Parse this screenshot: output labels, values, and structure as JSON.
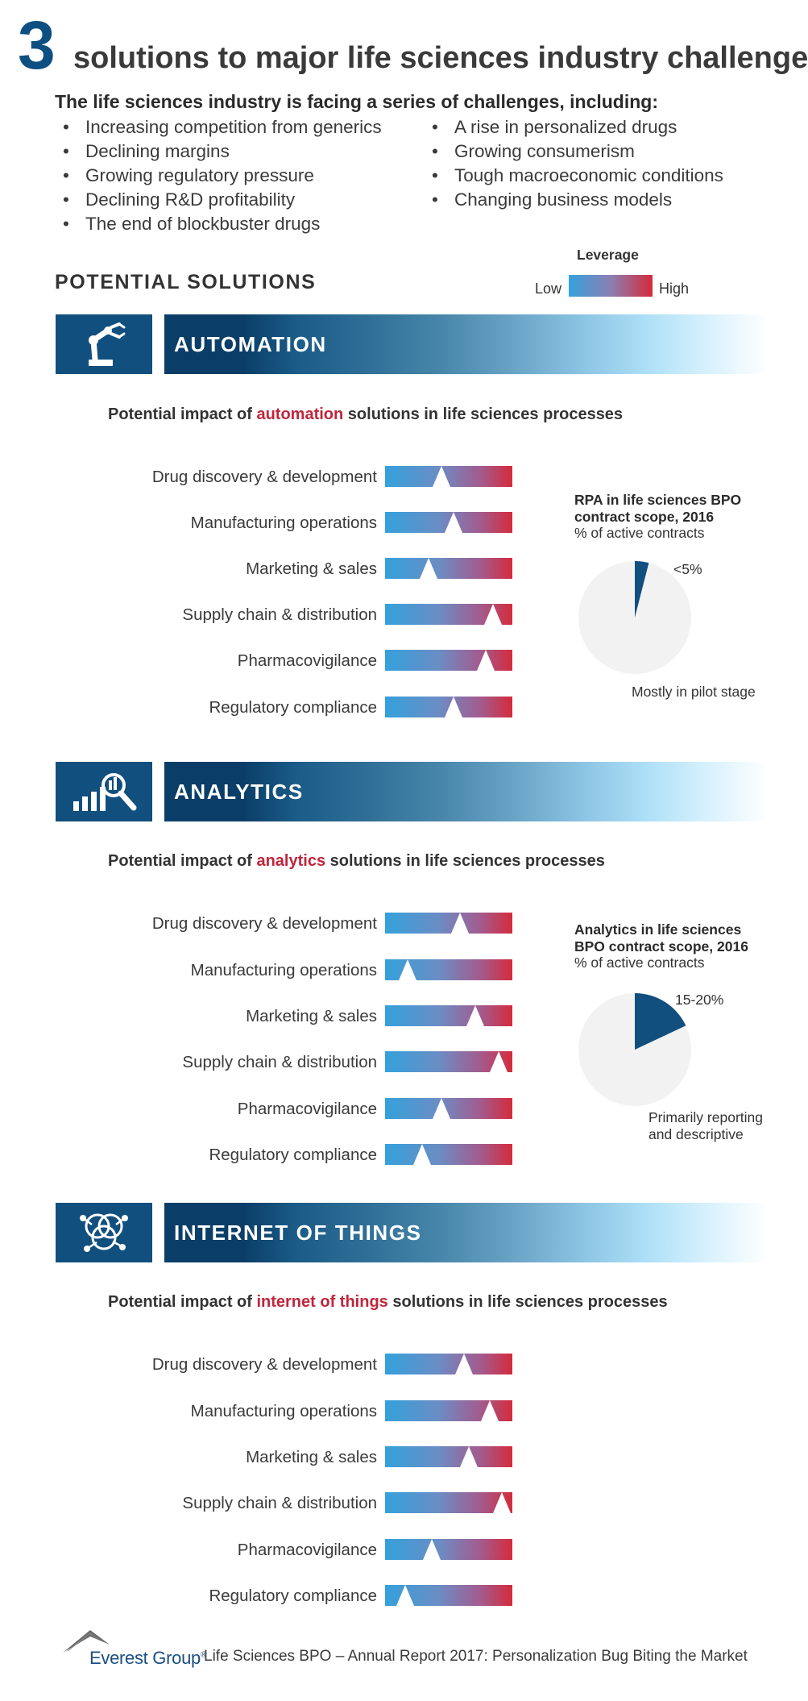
{
  "title": {
    "number": "3",
    "text": "solutions to major life sciences industry challenges"
  },
  "intro": "The life sciences industry is facing a series of challenges, including:",
  "challenges_left": [
    "Increasing competition from generics",
    "Declining margins",
    "Growing regulatory pressure",
    "Declining R&D profitability",
    "The end of blockbuster drugs"
  ],
  "challenges_right": [
    "A rise in personalized drugs",
    "Growing consumerism",
    "Tough macroeconomic conditions",
    "Changing business models"
  ],
  "potential_solutions": "POTENTIAL SOLUTIONS",
  "legend": {
    "title": "Leverage",
    "low": "Low",
    "high": "High",
    "low_color": "#34a1dc",
    "high_color": "#d42b3b"
  },
  "colors": {
    "navy": "#114f7e",
    "accent_red": "#c0253a",
    "title_blue": "#0d4f80"
  },
  "sections": [
    {
      "name": "AUTOMATION",
      "icon": "robot-arm-icon",
      "impact": {
        "prefix": "Potential impact of ",
        "highlight": "automation",
        "suffix": " solutions in life sciences processes"
      },
      "rows": [
        {
          "label": "Drug discovery & development",
          "leverage": 0.44
        },
        {
          "label": "Manufacturing operations",
          "leverage": 0.54
        },
        {
          "label": "Marketing & sales",
          "leverage": 0.34
        },
        {
          "label": "Supply chain & distribution",
          "leverage": 0.85
        },
        {
          "label": "Pharmacovigilance",
          "leverage": 0.79
        },
        {
          "label": "Regulatory compliance",
          "leverage": 0.54
        }
      ],
      "pie": {
        "title": [
          "RPA in life sciences BPO",
          "contract scope, 2016"
        ],
        "subtitle": "% of active contracts",
        "slice_label": "<5%",
        "slice_fraction": 0.04,
        "note": [
          "Mostly in pilot stage"
        ]
      }
    },
    {
      "name": "ANALYTICS",
      "icon": "analytics-magnifier-icon",
      "impact": {
        "prefix": "Potential impact of ",
        "highlight": "analytics",
        "suffix": " solutions in life sciences processes"
      },
      "rows": [
        {
          "label": "Drug discovery & development",
          "leverage": 0.59
        },
        {
          "label": "Manufacturing operations",
          "leverage": 0.18
        },
        {
          "label": "Marketing & sales",
          "leverage": 0.71
        },
        {
          "label": "Supply chain & distribution",
          "leverage": 0.89
        },
        {
          "label": "Pharmacovigilance",
          "leverage": 0.44
        },
        {
          "label": "Regulatory compliance",
          "leverage": 0.29
        }
      ],
      "pie": {
        "title": [
          "Analytics in life sciences",
          "BPO contract scope, 2016"
        ],
        "subtitle": "% of active contracts",
        "slice_label": "15-20%",
        "slice_fraction": 0.18,
        "note": [
          "Primarily reporting",
          "and descriptive"
        ]
      }
    },
    {
      "name": "INTERNET OF THINGS",
      "icon": "iot-connected-circles-icon",
      "impact": {
        "prefix": "Potential impact of ",
        "highlight": "internet of things",
        "suffix": " solutions in life sciences processes"
      },
      "rows": [
        {
          "label": "Drug discovery & development",
          "leverage": 0.62
        },
        {
          "label": "Manufacturing operations",
          "leverage": 0.82
        },
        {
          "label": "Marketing & sales",
          "leverage": 0.66
        },
        {
          "label": "Supply chain & distribution",
          "leverage": 0.92
        },
        {
          "label": "Pharmacovigilance",
          "leverage": 0.37
        },
        {
          "label": "Regulatory compliance",
          "leverage": 0.16
        }
      ],
      "pie": null
    }
  ],
  "footer": {
    "brand": "Everest Group",
    "reg": "®",
    "text": "Life Sciences BPO – Annual Report 2017: Personalization Bug Biting the Market"
  }
}
